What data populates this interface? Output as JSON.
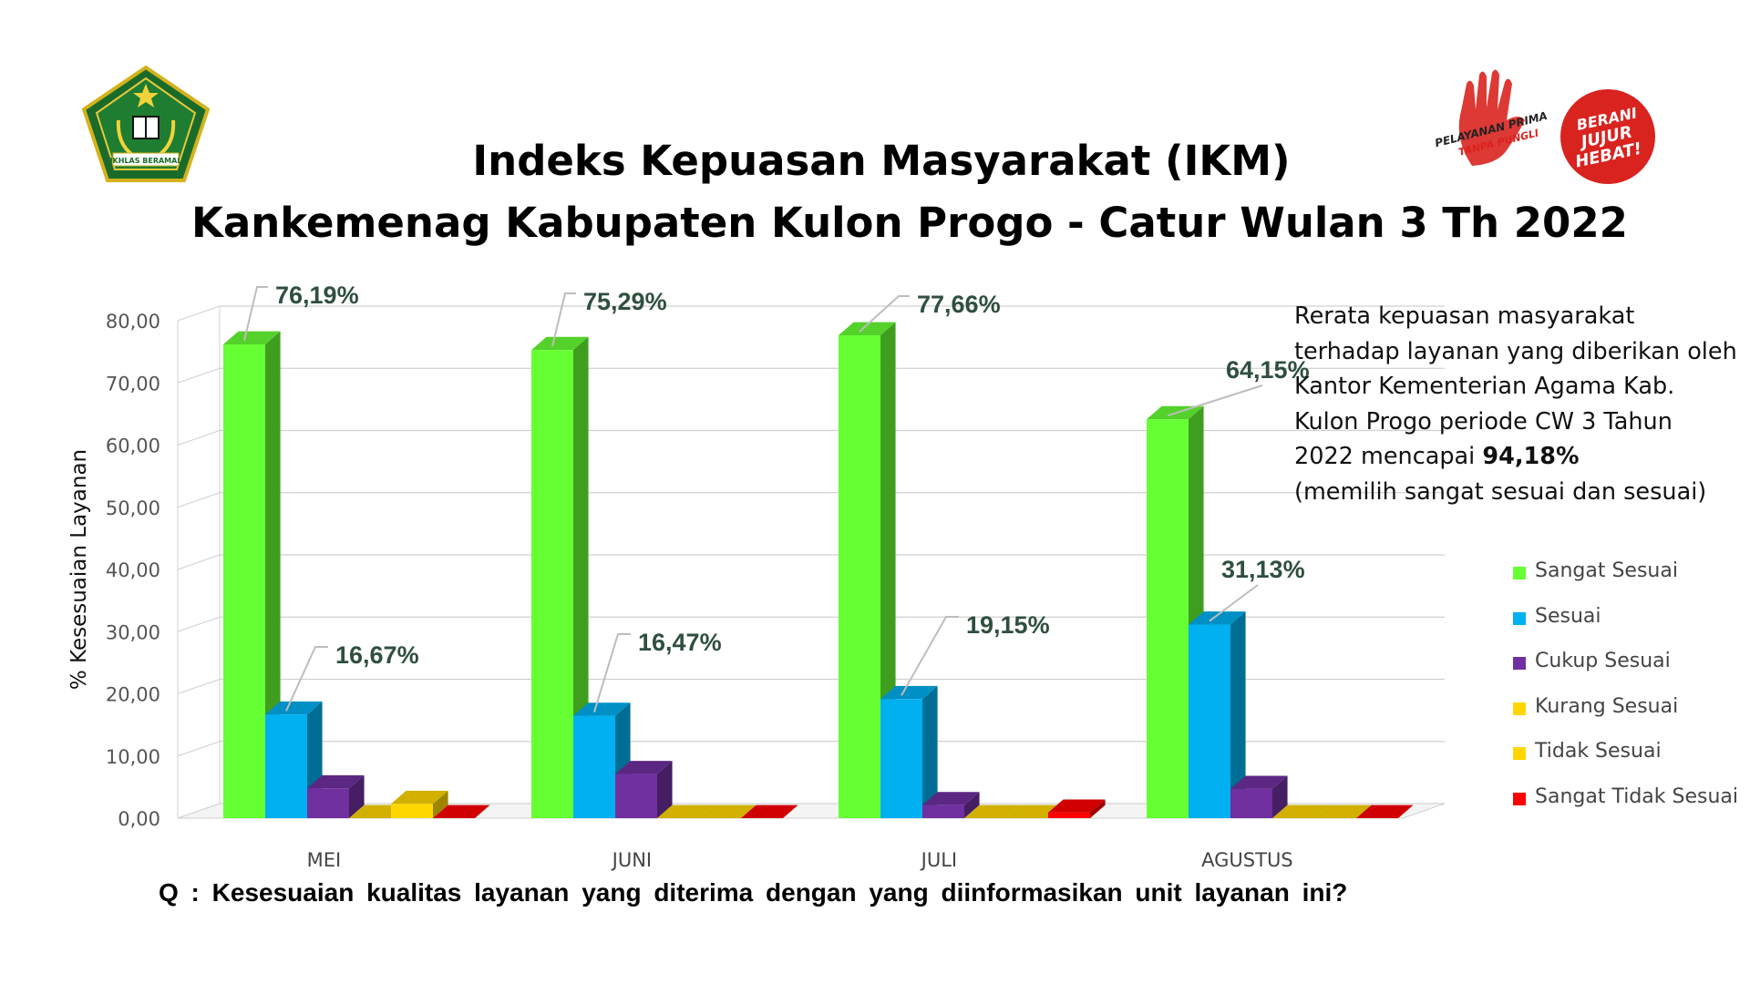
{
  "chart_data": {
    "type": "bar",
    "title": "Indeks Kepuasan Masyarakat (IKM)",
    "subtitle": "Kankemenag Kabupaten Kulon Progo - Catur Wulan 3 Th 2022",
    "xlabel": "Q : Kesesuaian kualitas layanan yang diterima dengan yang diinformasikan unit layanan ini?",
    "ylabel": "% Kesesuaian Layanan",
    "ylim": [
      0,
      80
    ],
    "yticks": [
      "0,00",
      "10,00",
      "20,00",
      "30,00",
      "40,00",
      "50,00",
      "60,00",
      "70,00",
      "80,00"
    ],
    "grid": true,
    "legend_position": "right",
    "categories": [
      "MEI",
      "JUNI",
      "JULI",
      "AGUSTUS"
    ],
    "series": [
      {
        "name": "Sangat Sesuai",
        "color": "#66FF33",
        "values": [
          76.19,
          75.29,
          77.66,
          64.15
        ]
      },
      {
        "name": "Sesuai",
        "color": "#00B0F0",
        "values": [
          16.67,
          16.47,
          19.15,
          31.13
        ]
      },
      {
        "name": "Cukup Sesuai",
        "color": "#7030A0",
        "values": [
          4.8,
          7.1,
          2.1,
          4.7
        ]
      },
      {
        "name": "Kurang Sesuai",
        "color": "#FFD700",
        "values": [
          0,
          0,
          0,
          0
        ]
      },
      {
        "name": "Tidak Sesuai",
        "color": "#FFD700",
        "values": [
          2.3,
          0,
          0,
          0
        ]
      },
      {
        "name": "Sangat Tidak Sesuai",
        "color": "#FF0000",
        "values": [
          0,
          0,
          0.9,
          0
        ]
      }
    ],
    "data_labels": [
      {
        "series": 0,
        "category": 0,
        "text": "76,19%"
      },
      {
        "series": 0,
        "category": 1,
        "text": "75,29%"
      },
      {
        "series": 0,
        "category": 2,
        "text": "77,66%"
      },
      {
        "series": 0,
        "category": 3,
        "text": "64,15%"
      },
      {
        "series": 1,
        "category": 0,
        "text": "16,67%"
      },
      {
        "series": 1,
        "category": 1,
        "text": "16,47%"
      },
      {
        "series": 1,
        "category": 2,
        "text": "19,15%"
      },
      {
        "series": 1,
        "category": 3,
        "text": "31,13%"
      }
    ]
  },
  "note": {
    "line1": "Rerata kepuasan masyarakat",
    "line2": "terhadap layanan yang diberikan oleh",
    "line3": "Kantor Kementerian Agama Kab.",
    "line4": "Kulon Progo periode CW 3 Tahun",
    "line5_prefix": "2022 mencapai ",
    "line5_bold": "94,18%",
    "line6": "(memilih sangat sesuai dan sesuai)"
  },
  "logos": {
    "left_banner": "IKHLAS BERAMAL",
    "right1_text": "PELAYANAN PRIMA",
    "right1_sub": "TANPA PUNGLI",
    "right2_line1": "BERANI",
    "right2_line2": "JUJUR",
    "right2_line3": "HEBAT!"
  }
}
